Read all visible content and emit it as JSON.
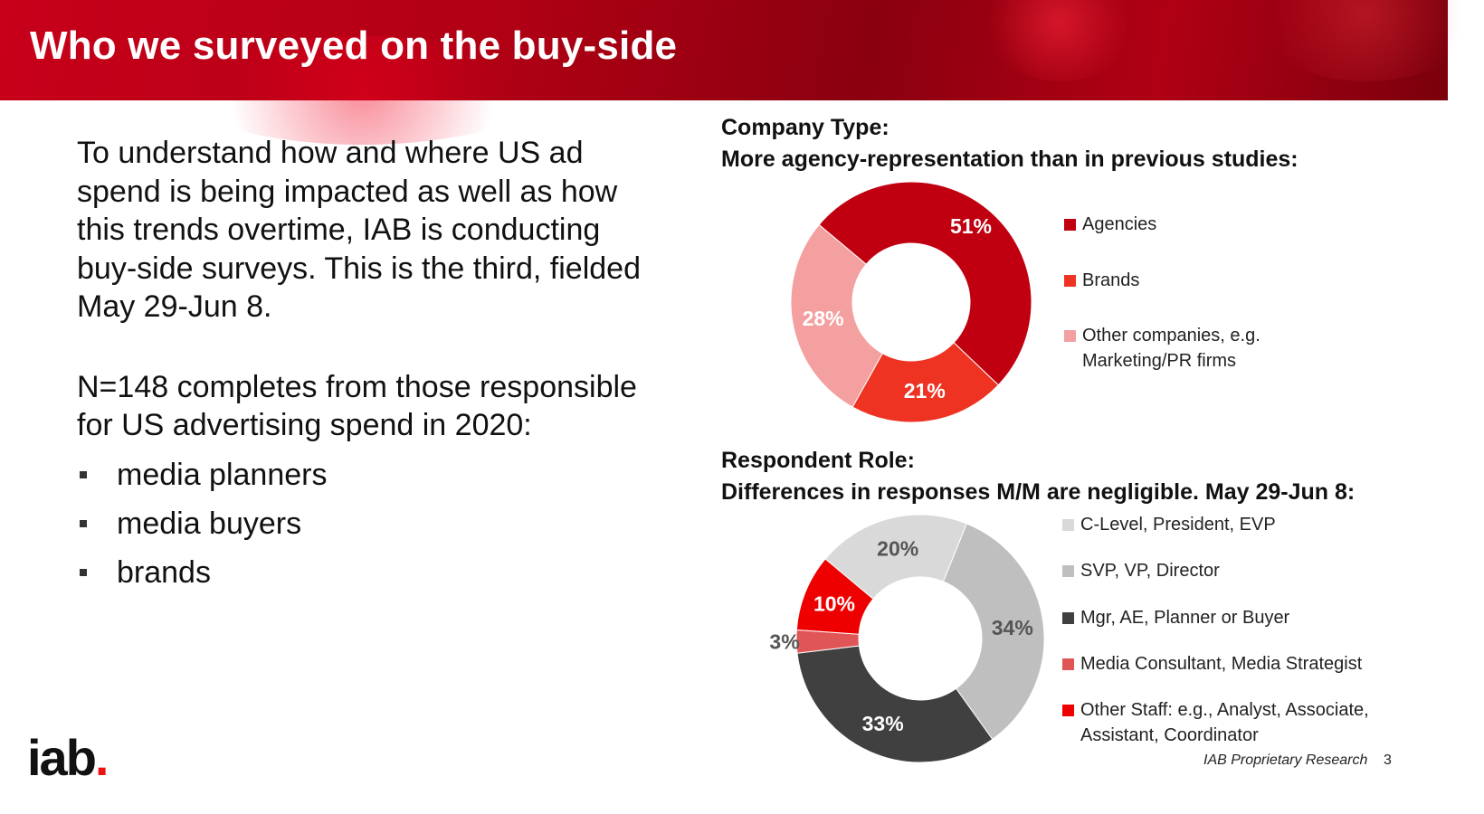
{
  "header": {
    "title": "Who we surveyed on the buy-side"
  },
  "left": {
    "paragraph1": "To understand how and where US ad spend is being impacted as well as how this trends overtime, IAB is conducting buy-side surveys. This is the third, fielded May 29-Jun 8.",
    "paragraph2": "N=148 completes from those responsible for US advertising spend in 2020:",
    "bullets": [
      "media planners",
      "media buyers",
      "brands"
    ]
  },
  "chart_data": [
    {
      "type": "pie",
      "variant": "donut",
      "title": "Company Type:",
      "subtitle": "More agency-representation than in previous studies:",
      "categories": [
        "Agencies",
        "Brands",
        "Other companies, e.g. Marketing/PR firms"
      ],
      "values": [
        51,
        21,
        28
      ],
      "labels": [
        "51%",
        "21%",
        "28%"
      ],
      "colors": [
        "#c00010",
        "#ee3322",
        "#f4a0a0"
      ],
      "label_colors": [
        "#ffffff",
        "#ffffff",
        "#ffffff"
      ],
      "legend_position": "right"
    },
    {
      "type": "pie",
      "variant": "donut",
      "title": "Respondent Role:",
      "subtitle": "Differences in responses M/M are negligible. May 29-Jun 8:",
      "categories": [
        "C-Level, President, EVP",
        "SVP, VP, Director",
        "Mgr, AE, Planner or Buyer",
        "Media Consultant, Media Strategist",
        "Other Staff: e.g., Analyst, Associate, Assistant, Coordinator"
      ],
      "values": [
        20,
        34,
        33,
        3,
        10
      ],
      "labels": [
        "20%",
        "34%",
        "33%",
        "3%",
        "10%"
      ],
      "colors": [
        "#d9d9d9",
        "#bfbfbf",
        "#404040",
        "#e05555",
        "#ee0000"
      ],
      "label_colors": [
        "#555555",
        "#555555",
        "#ffffff",
        "#555555",
        "#ffffff"
      ],
      "legend_position": "right"
    }
  ],
  "logo": {
    "text": "iab",
    "dot": "."
  },
  "footer": {
    "research": "IAB Proprietary Research",
    "page": "3"
  }
}
